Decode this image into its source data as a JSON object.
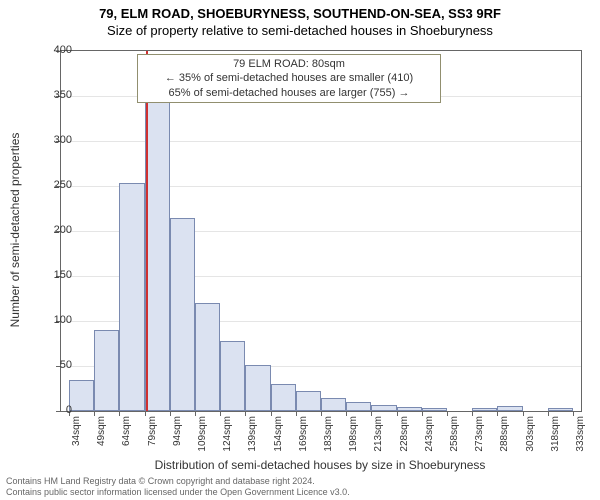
{
  "title": "79, ELM ROAD, SHOEBURYNESS, SOUTHEND-ON-SEA, SS3 9RF",
  "subtitle": "Size of property relative to semi-detached houses in Shoeburyness",
  "chart": {
    "type": "histogram",
    "ylim": [
      0,
      400
    ],
    "ytick_step": 50,
    "ylabel": "Number of semi-detached properties",
    "xlabel": "Distribution of semi-detached houses by size in Shoeburyness",
    "x_tick_labels": [
      "34sqm",
      "49sqm",
      "64sqm",
      "79sqm",
      "94sqm",
      "109sqm",
      "124sqm",
      "139sqm",
      "154sqm",
      "169sqm",
      "183sqm",
      "198sqm",
      "213sqm",
      "228sqm",
      "243sqm",
      "258sqm",
      "273sqm",
      "288sqm",
      "303sqm",
      "318sqm",
      "333sqm"
    ],
    "bars": [
      {
        "v": 35
      },
      {
        "v": 90
      },
      {
        "v": 253
      },
      {
        "v": 346
      },
      {
        "v": 215
      },
      {
        "v": 120
      },
      {
        "v": 78
      },
      {
        "v": 51
      },
      {
        "v": 30
      },
      {
        "v": 22
      },
      {
        "v": 14
      },
      {
        "v": 10
      },
      {
        "v": 7
      },
      {
        "v": 5
      },
      {
        "v": 3
      },
      {
        "v": 0
      },
      {
        "v": 3
      },
      {
        "v": 6
      },
      {
        "v": 0
      },
      {
        "v": 3
      }
    ],
    "bar_fill": "#dbe2f1",
    "bar_stroke": "#7a8ab0",
    "marker": {
      "value_sqm": 80,
      "color": "#d03030"
    },
    "annotation": {
      "line1": "79 ELM ROAD: 80sqm",
      "line2": "← 35% of semi-detached houses are smaller (410)",
      "line3": "65% of semi-detached houses are larger (755) →"
    },
    "background_color": "#ffffff",
    "grid_color": "#e5e5e5"
  },
  "footer": {
    "line1": "Contains HM Land Registry data © Crown copyright and database right 2024.",
    "line2": "Contains public sector information licensed under the Open Government Licence v3.0."
  }
}
